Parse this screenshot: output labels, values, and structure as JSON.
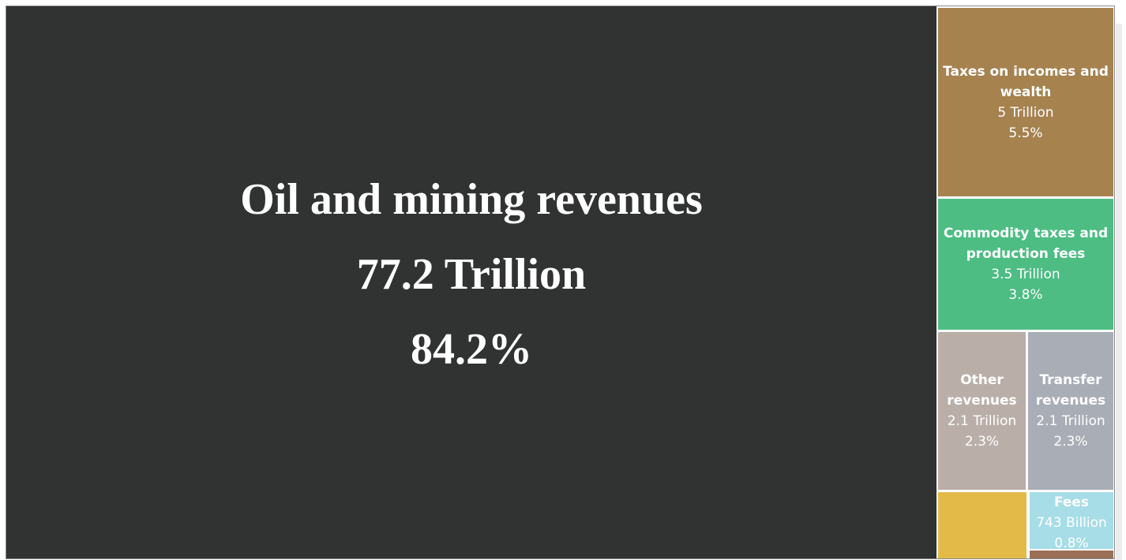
{
  "chart_data": {
    "type": "treemap",
    "categories": [
      "Oil and mining revenues",
      "Taxes on incomes and wealth",
      "Commodity taxes and production fees",
      "Other revenues",
      "Transfer revenues",
      "Fees"
    ],
    "values": [
      77.2,
      5,
      3.5,
      2.1,
      2.1,
      0.743
    ],
    "value_labels": [
      "77.2 Trillion",
      "5 Trillion",
      "3.5 Trillion",
      "2.1 Trillion",
      "2.1 Trillion",
      "743 Billion"
    ],
    "shares": [
      84.2,
      5.5,
      3.8,
      2.3,
      2.3,
      0.8
    ],
    "share_labels": [
      "84.2%",
      "5.5%",
      "3.8%",
      "2.3%",
      "2.3%",
      "0.8%"
    ],
    "colors": [
      "#313332",
      "#a6824f",
      "#4dbd84",
      "#b9afa8",
      "#a9adb6",
      "#a6dde7"
    ]
  }
}
